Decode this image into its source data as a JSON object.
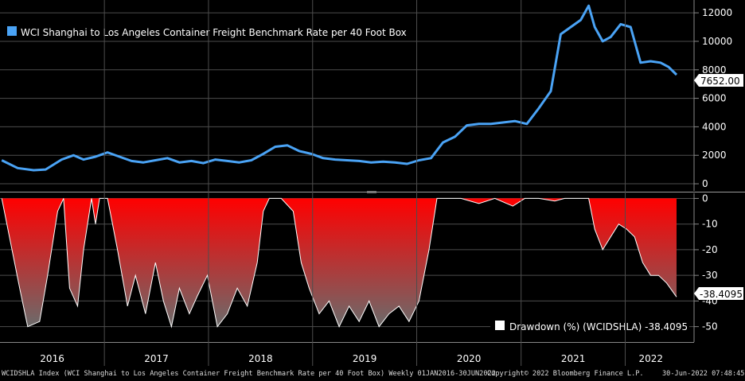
{
  "colors": {
    "background": "#000000",
    "wci_line": "#4aa3f5",
    "drawdown_fill_top": "#ff0000",
    "drawdown_fill_bottom": "#6b6b6b",
    "drawdown_line": "#ffffff",
    "grid": "#555555"
  },
  "chart_data": [
    {
      "type": "line",
      "title": "",
      "legend": "WCI Shanghai to Los Angeles Container Freight Benchmark Rate per 40 Foot Box",
      "legend_position": "top-left",
      "last_value_label": "7652.00",
      "ylim": [
        -500,
        12900
      ],
      "yticks": [
        0,
        2000,
        4000,
        6000,
        8000,
        10000,
        12000
      ],
      "ytick_labels": [
        "0",
        "2000",
        "4000",
        "6000",
        "8000",
        "10000",
        "12000"
      ],
      "grid": true,
      "x": [
        "2016-01-07",
        "2016-03-03",
        "2016-04-28",
        "2016-06-09",
        "2016-08-04",
        "2016-09-15",
        "2016-10-20",
        "2016-12-01",
        "2017-01-12",
        "2017-02-23",
        "2017-04-06",
        "2017-05-18",
        "2017-06-29",
        "2017-08-10",
        "2017-09-21",
        "2017-11-02",
        "2017-12-14",
        "2018-01-25",
        "2018-03-08",
        "2018-04-19",
        "2018-05-31",
        "2018-07-12",
        "2018-08-23",
        "2018-10-04",
        "2018-11-15",
        "2018-12-27",
        "2019-02-07",
        "2019-03-21",
        "2019-05-02",
        "2019-06-13",
        "2019-07-25",
        "2019-09-05",
        "2019-10-17",
        "2019-11-28",
        "2020-01-09",
        "2020-02-20",
        "2020-04-02",
        "2020-05-14",
        "2020-06-25",
        "2020-08-06",
        "2020-09-17",
        "2020-10-29",
        "2020-12-10",
        "2021-01-21",
        "2021-03-04",
        "2021-04-15",
        "2021-05-20",
        "2021-06-24",
        "2021-07-29",
        "2021-08-26",
        "2021-09-16",
        "2021-10-14",
        "2021-11-11",
        "2021-12-16",
        "2022-01-20",
        "2022-02-24",
        "2022-03-31",
        "2022-05-05",
        "2022-06-02",
        "2022-06-30"
      ],
      "series": [
        {
          "name": "WCI Shanghai to Los Angeles Container Freight Benchmark Rate per 40 Foot Box",
          "values": [
            1650,
            1100,
            950,
            1000,
            1700,
            2000,
            1700,
            1900,
            2200,
            1900,
            1600,
            1500,
            1650,
            1800,
            1500,
            1600,
            1450,
            1700,
            1600,
            1500,
            1650,
            2100,
            2600,
            2700,
            2300,
            2100,
            1800,
            1700,
            1650,
            1600,
            1500,
            1550,
            1500,
            1400,
            1650,
            1800,
            2900,
            3300,
            4100,
            4200,
            4200,
            4300,
            4400,
            4200,
            5300,
            6500,
            10500,
            11000,
            11500,
            12500,
            11000,
            10000,
            10300,
            11200,
            11000,
            8500,
            8600,
            8500,
            8200,
            7652
          ]
        }
      ]
    },
    {
      "type": "area",
      "title": "",
      "legend": "Drawdown (%) (WCIDSHLA) -38.4095",
      "legend_position": "bottom-right",
      "last_value_label": "-38.4095",
      "ylim": [
        -56,
        2
      ],
      "yticks": [
        0,
        -10,
        -20,
        -30,
        -40,
        -50
      ],
      "ytick_labels": [
        "0",
        "-10",
        "-20",
        "-30",
        "-40",
        "-50"
      ],
      "grid": true,
      "x": [
        "2016-01-07",
        "2016-03-10",
        "2016-04-07",
        "2016-05-19",
        "2016-06-16",
        "2016-07-21",
        "2016-08-11",
        "2016-09-01",
        "2016-09-29",
        "2016-10-20",
        "2016-11-17",
        "2016-12-01",
        "2016-12-15",
        "2017-01-12",
        "2017-02-16",
        "2017-03-23",
        "2017-04-20",
        "2017-05-25",
        "2017-06-29",
        "2017-07-27",
        "2017-08-24",
        "2017-09-21",
        "2017-10-26",
        "2017-11-23",
        "2017-12-28",
        "2018-02-01",
        "2018-03-08",
        "2018-04-12",
        "2018-05-17",
        "2018-06-21",
        "2018-07-12",
        "2018-08-02",
        "2018-09-13",
        "2018-10-25",
        "2018-11-22",
        "2018-12-20",
        "2019-01-24",
        "2019-02-28",
        "2019-04-04",
        "2019-05-09",
        "2019-06-13",
        "2019-07-18",
        "2019-08-22",
        "2019-09-26",
        "2019-10-31",
        "2019-12-05",
        "2020-01-09",
        "2020-02-13",
        "2020-03-12",
        "2020-04-09",
        "2020-06-04",
        "2020-08-06",
        "2020-10-01",
        "2020-12-03",
        "2021-01-14",
        "2021-03-04",
        "2021-04-29",
        "2021-06-03",
        "2021-07-15",
        "2021-08-26",
        "2021-09-16",
        "2021-10-14",
        "2021-11-11",
        "2021-12-09",
        "2022-01-06",
        "2022-02-03",
        "2022-03-03",
        "2022-03-31",
        "2022-04-28",
        "2022-05-26",
        "2022-06-30"
      ],
      "series": [
        {
          "name": "Drawdown (%) (WCIDSHLA)",
          "values": [
            0,
            -35,
            -50,
            -48,
            -30,
            -5,
            0,
            -35,
            -42,
            -20,
            0,
            -10,
            0,
            0,
            -20,
            -42,
            -30,
            -45,
            -25,
            -40,
            -50,
            -35,
            -45,
            -38,
            -30,
            -50,
            -45,
            -35,
            -42,
            -25,
            -5,
            0,
            0,
            -5,
            -25,
            -35,
            -45,
            -40,
            -50,
            -42,
            -48,
            -40,
            -50,
            -45,
            -42,
            -48,
            -40,
            -20,
            0,
            0,
            0,
            -2,
            0,
            -3,
            0,
            0,
            -1,
            0,
            0,
            0,
            -12,
            -20,
            -15,
            -10,
            -12,
            -15,
            -25,
            -30,
            -30,
            -33,
            -38.4095
          ]
        }
      ]
    }
  ],
  "xaxis": {
    "year_labels": [
      "2016",
      "2017",
      "2018",
      "2019",
      "2020",
      "2021",
      "2022"
    ]
  },
  "footer": {
    "left": "WCIDSHLA Index (WCI Shanghai to Los Angeles Container Freight Benchmark Rate per 40 Foot Box) Weekly 01JAN2016-30JUN2022",
    "middle": "Copyright© 2022 Bloomberg Finance L.P.",
    "right": "30-Jun-2022 07:48:45"
  }
}
